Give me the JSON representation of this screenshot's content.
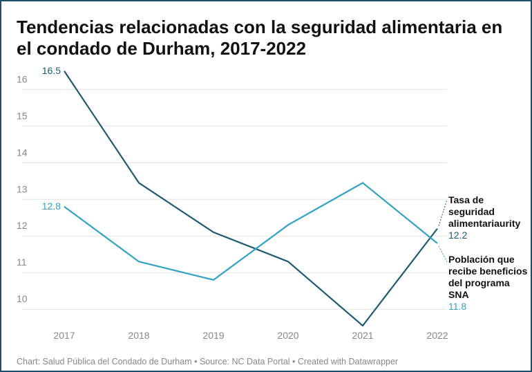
{
  "chart_data": {
    "type": "line",
    "title": "Tendencias relacionadas con la seguridad alimentaria en el condado de Durham, 2017-2022",
    "categories": [
      "2017",
      "2018",
      "2019",
      "2020",
      "2021",
      "2022"
    ],
    "series": [
      {
        "name": "Tasa de seguridad alimentariaurity",
        "color": "#1c5a73",
        "values": [
          16.5,
          13.45,
          12.1,
          11.3,
          9.55,
          12.2
        ]
      },
      {
        "name": "Población que recibe beneficios del programa SNA",
        "color": "#2ea3c7",
        "values": [
          12.8,
          11.3,
          10.8,
          12.3,
          13.45,
          11.8
        ]
      }
    ],
    "ylim": [
      9.4,
      16.6
    ],
    "yticks": [
      10,
      11,
      12,
      13,
      14,
      15,
      16
    ],
    "grid": true,
    "footer": "Chart: Salud Pública del Condado de Durham • Source: NC Data Portal • Created with Datawrapper"
  }
}
